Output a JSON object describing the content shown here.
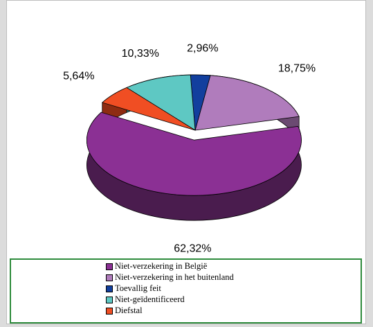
{
  "chart_data": {
    "type": "pie",
    "title": "",
    "categories": [
      "Niet-verzekering in België",
      "Niet-verzekering in het buitenland",
      "Toevallig feit",
      "Niet-geïdentificeerd",
      "Diefstal"
    ],
    "values": [
      62.32,
      18.75,
      2.96,
      10.33,
      5.64
    ],
    "value_labels": [
      "62,32%",
      "18,75%",
      "2,96%",
      "10,33%",
      "5,64%"
    ],
    "colors": [
      "#8b3094",
      "#b07cbc",
      "#123f9e",
      "#5ec8c3",
      "#f04e23"
    ],
    "side_colors": [
      "#4a1c4e",
      "#6b4a72",
      "#0a2566",
      "#3a8a86",
      "#8e2c12"
    ],
    "legend_position": "bottom",
    "exploded_slice": "Niet-verzekering in België"
  }
}
